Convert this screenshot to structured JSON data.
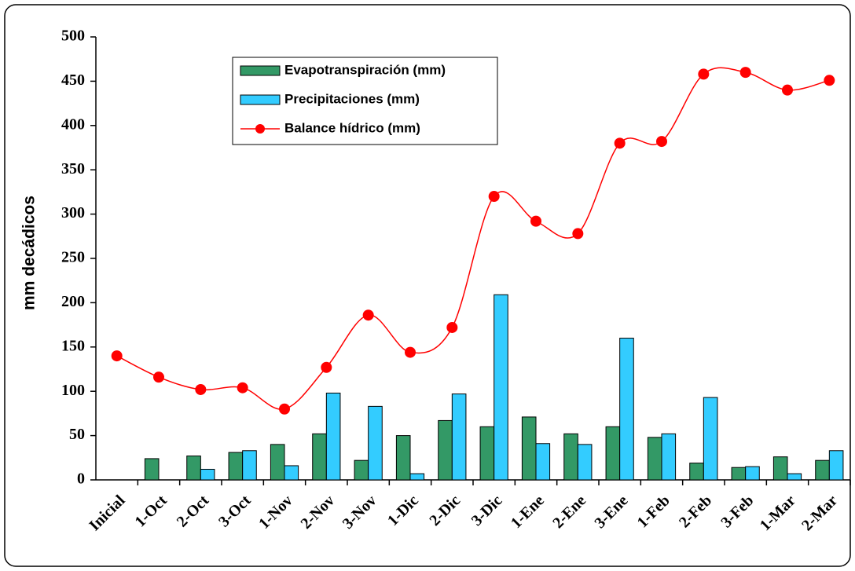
{
  "chart_data": {
    "type": "bar",
    "y_label": "mm decádicos",
    "categories": [
      "Inicial",
      "1-Oct",
      "2-Oct",
      "3-Oct",
      "1-Nov",
      "2-Nov",
      "3-Nov",
      "1-Dic",
      "2-Dic",
      "3-Dic",
      "1-Ene",
      "2-Ene",
      "3-Ene",
      "1-Feb",
      "2-Feb",
      "3-Feb",
      "1-Mar",
      "2-Mar"
    ],
    "series": [
      {
        "name": "Evapotranspiración (mm)",
        "type": "bar",
        "color": "#339966",
        "values": [
          null,
          24,
          27,
          31,
          40,
          52,
          22,
          50,
          67,
          60,
          71,
          52,
          60,
          48,
          19,
          14,
          26,
          22
        ]
      },
      {
        "name": "Precipitaciones (mm)",
        "type": "bar",
        "color": "#33ccff",
        "values": [
          null,
          null,
          12,
          33,
          16,
          98,
          83,
          7,
          97,
          209,
          41,
          40,
          160,
          52,
          93,
          15,
          7,
          33
        ]
      },
      {
        "name": "Balance hídrico (mm)",
        "type": "line",
        "color": "#ff0000",
        "values": [
          140,
          116,
          102,
          104,
          80,
          127,
          186,
          144,
          172,
          320,
          292,
          278,
          380,
          382,
          458,
          460,
          440,
          451
        ]
      }
    ],
    "ylim": [
      0,
      500
    ],
    "yticks": [
      0,
      50,
      100,
      150,
      200,
      250,
      300,
      350,
      400,
      450,
      500
    ],
    "grid": false
  }
}
